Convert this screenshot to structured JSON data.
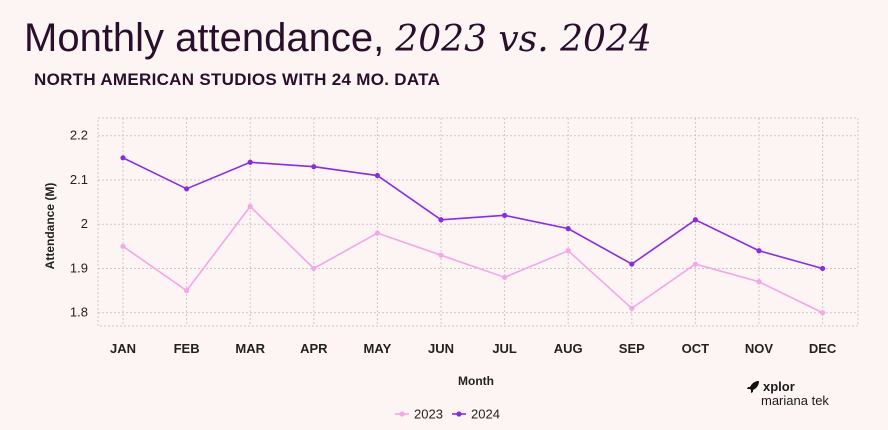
{
  "title_main": "Monthly attendance, ",
  "title_years": "2023 vs. 2024",
  "subtitle": "NORTH AMERICAN STUDIOS WITH 24 MO. DATA",
  "brand": {
    "line1": "xplor",
    "line2": "mariana tek"
  },
  "chart_data": {
    "type": "line",
    "categories": [
      "JAN",
      "FEB",
      "MAR",
      "APR",
      "MAY",
      "JUN",
      "JUL",
      "AUG",
      "SEP",
      "OCT",
      "NOV",
      "DEC"
    ],
    "series": [
      {
        "name": "2023",
        "color": "#f3a6e8",
        "values": [
          1.95,
          1.85,
          2.04,
          1.9,
          1.98,
          1.93,
          1.88,
          1.94,
          1.81,
          1.91,
          1.87,
          1.8
        ]
      },
      {
        "name": "2024",
        "color": "#8a2be2",
        "values": [
          2.15,
          2.08,
          2.14,
          2.13,
          2.11,
          2.01,
          2.02,
          1.99,
          1.91,
          2.01,
          1.94,
          1.9
        ]
      }
    ],
    "yticks": [
      "1.8",
      "1.9",
      "2",
      "2.1",
      "2.2"
    ],
    "ylim": [
      1.77,
      2.24
    ],
    "xlabel": "Month",
    "ylabel": "Attendance (M)",
    "grid": true,
    "legend_position": "bottom-center"
  }
}
